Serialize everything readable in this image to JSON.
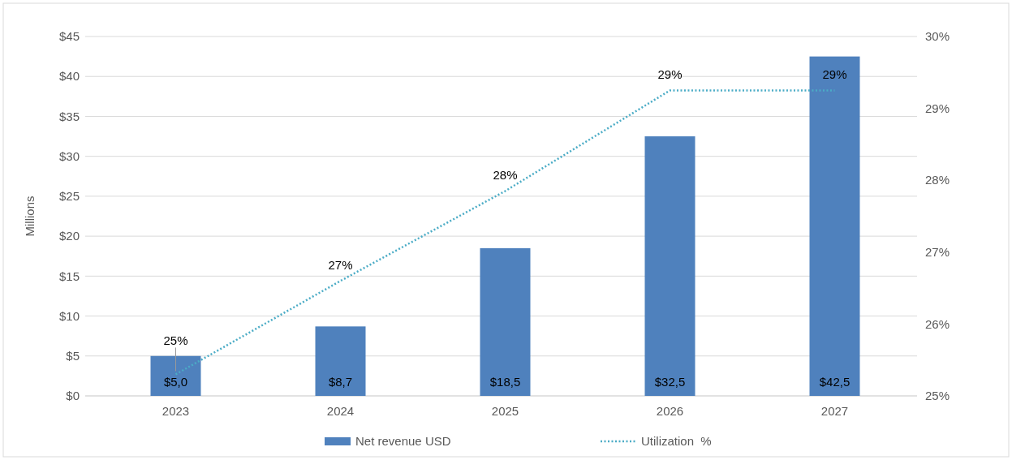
{
  "chart_data": {
    "type": "bar",
    "categories": [
      "2023",
      "2024",
      "2025",
      "2026",
      "2027"
    ],
    "ylabel": "Millions",
    "ylim": [
      0,
      45
    ],
    "yticks": [
      {
        "value": 0,
        "label": "$0"
      },
      {
        "value": 5,
        "label": "$5"
      },
      {
        "value": 10,
        "label": "$10"
      },
      {
        "value": 15,
        "label": "$15"
      },
      {
        "value": 20,
        "label": "$20"
      },
      {
        "value": 25,
        "label": "$25"
      },
      {
        "value": 30,
        "label": "$30"
      },
      {
        "value": 35,
        "label": "$35"
      },
      {
        "value": 40,
        "label": "$40"
      },
      {
        "value": 45,
        "label": "$45"
      }
    ],
    "y2lim": [
      25,
      30
    ],
    "y2ticks": [
      {
        "value": 25,
        "label": "25%"
      },
      {
        "value": 26,
        "label": "26%"
      },
      {
        "value": 27,
        "label": "27%"
      },
      {
        "value": 28,
        "label": "28%"
      },
      {
        "value": 29,
        "label": "29%"
      },
      {
        "value": 30,
        "label": "30%"
      }
    ],
    "series": [
      {
        "name": "Net revenue USD",
        "color": "#4f81bd",
        "values": [
          5.0,
          8.7,
          18.5,
          32.5,
          42.5
        ],
        "value_labels": [
          "$5,0",
          "$8,7",
          "$18,5",
          "$32,5",
          "$42,5"
        ]
      },
      {
        "name": "Utilization  %",
        "type": "line",
        "axis": "y2",
        "color": "#4bacc6",
        "line_style": "dotted",
        "marker": "none",
        "values": [
          25.3,
          26.6,
          27.85,
          29.25,
          29.25
        ],
        "value_labels": [
          "25%",
          "27%",
          "28%",
          "29%",
          "29%"
        ]
      }
    ],
    "grid": "y",
    "legend": "bottom"
  }
}
